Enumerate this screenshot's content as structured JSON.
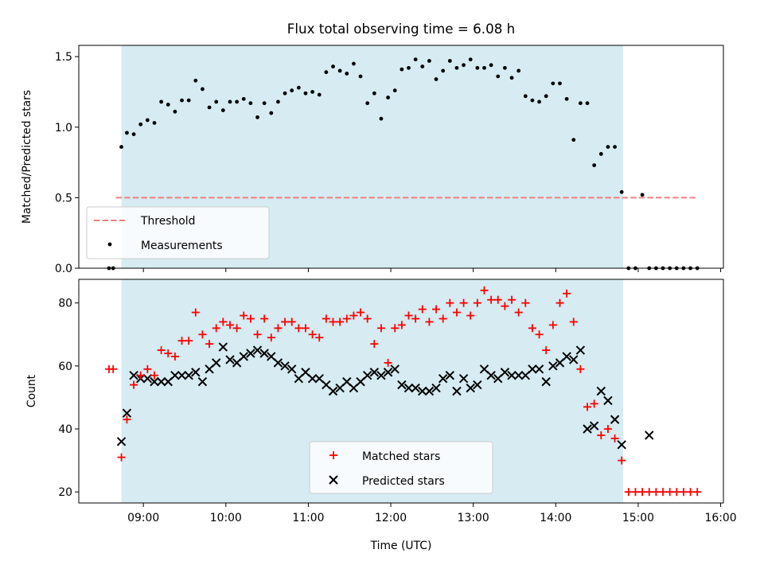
{
  "chart_data": [
    {
      "type": "scatter",
      "title": "Flux total observing time = 6.08 h",
      "ylabel": "Matched/Predicted stars",
      "xlabel": "",
      "ylim": [
        0,
        1.58
      ],
      "yticks": [
        0.0,
        0.5,
        1.0,
        1.5
      ],
      "ytick_labels": [
        "0.0",
        "0.5",
        "1.0",
        "1.5"
      ],
      "shaded_span": [
        "08:44",
        "14:49"
      ],
      "threshold": {
        "name": "Threshold",
        "value": 0.5,
        "x_range": [
          "08:40",
          "15:42"
        ],
        "color": "#f08080"
      },
      "legend": {
        "position": "lower-left",
        "entries": [
          "Threshold",
          "Measurements"
        ]
      },
      "series": [
        {
          "name": "Measurements",
          "color": "#000000",
          "x": [
            "08:35",
            "08:38",
            "08:44",
            "08:48",
            "08:53",
            "08:58",
            "09:03",
            "09:08",
            "09:13",
            "09:18",
            "09:23",
            "09:28",
            "09:33",
            "09:38",
            "09:43",
            "09:48",
            "09:53",
            "09:58",
            "10:03",
            "10:08",
            "10:13",
            "10:18",
            "10:23",
            "10:28",
            "10:33",
            "10:38",
            "10:43",
            "10:48",
            "10:53",
            "10:58",
            "11:03",
            "11:08",
            "11:13",
            "11:18",
            "11:23",
            "11:28",
            "11:33",
            "11:38",
            "11:43",
            "11:48",
            "11:53",
            "11:58",
            "12:03",
            "12:08",
            "12:13",
            "12:18",
            "12:23",
            "12:28",
            "12:33",
            "12:38",
            "12:43",
            "12:48",
            "12:53",
            "12:58",
            "13:03",
            "13:08",
            "13:13",
            "13:18",
            "13:23",
            "13:28",
            "13:33",
            "13:38",
            "13:43",
            "13:48",
            "13:53",
            "13:58",
            "14:03",
            "14:08",
            "14:13",
            "14:18",
            "14:23",
            "14:28",
            "14:33",
            "14:38",
            "14:43",
            "14:48",
            "14:53",
            "14:58",
            "15:03",
            "15:08",
            "15:13",
            "15:18",
            "15:23",
            "15:28",
            "15:33",
            "15:38",
            "15:43"
          ],
          "y": [
            0.0,
            0.0,
            0.86,
            0.96,
            0.95,
            1.02,
            1.05,
            1.03,
            1.18,
            1.16,
            1.11,
            1.19,
            1.19,
            1.33,
            1.27,
            1.14,
            1.18,
            1.12,
            1.18,
            1.18,
            1.2,
            1.17,
            1.07,
            1.17,
            1.1,
            1.18,
            1.24,
            1.26,
            1.28,
            1.24,
            1.25,
            1.23,
            1.39,
            1.43,
            1.4,
            1.38,
            1.45,
            1.36,
            1.17,
            1.24,
            1.06,
            1.21,
            1.26,
            1.41,
            1.42,
            1.48,
            1.43,
            1.47,
            1.34,
            1.4,
            1.47,
            1.42,
            1.44,
            1.48,
            1.42,
            1.42,
            1.44,
            1.36,
            1.42,
            1.35,
            1.4,
            1.22,
            1.19,
            1.18,
            1.22,
            1.31,
            1.31,
            1.2,
            0.91,
            1.17,
            1.17,
            0.73,
            0.81,
            0.86,
            0.86,
            0.54,
            0.0,
            0.0,
            0.52,
            0.0,
            0.0,
            0.0,
            0.0,
            0.0,
            0.0,
            0.0,
            0.0
          ]
        }
      ]
    },
    {
      "type": "scatter",
      "title": "",
      "xlabel": "Time (UTC)",
      "ylabel": "Count",
      "xlim": [
        "08:13",
        "16:02"
      ],
      "ylim": [
        16.5,
        87.5
      ],
      "xticks": [
        "09:00",
        "10:00",
        "11:00",
        "12:00",
        "13:00",
        "14:00",
        "15:00",
        "16:00"
      ],
      "yticks": [
        20,
        40,
        60,
        80
      ],
      "ytick_labels": [
        "20",
        "40",
        "60",
        "80"
      ],
      "shaded_span": [
        "08:44",
        "14:49"
      ],
      "legend": {
        "position": "lower-center",
        "entries": [
          "Matched stars",
          "Predicted stars"
        ]
      },
      "series": [
        {
          "name": "Matched stars",
          "marker": "+",
          "color": "#ff0000",
          "x": [
            "08:35",
            "08:38",
            "08:44",
            "08:48",
            "08:53",
            "08:58",
            "09:03",
            "09:08",
            "09:13",
            "09:18",
            "09:23",
            "09:28",
            "09:33",
            "09:38",
            "09:43",
            "09:48",
            "09:53",
            "09:58",
            "10:03",
            "10:08",
            "10:13",
            "10:18",
            "10:23",
            "10:28",
            "10:33",
            "10:38",
            "10:43",
            "10:48",
            "10:53",
            "10:58",
            "11:03",
            "11:08",
            "11:13",
            "11:18",
            "11:23",
            "11:28",
            "11:33",
            "11:38",
            "11:43",
            "11:48",
            "11:53",
            "11:58",
            "12:03",
            "12:08",
            "12:13",
            "12:18",
            "12:23",
            "12:28",
            "12:33",
            "12:38",
            "12:43",
            "12:48",
            "12:53",
            "12:58",
            "13:03",
            "13:08",
            "13:13",
            "13:18",
            "13:23",
            "13:28",
            "13:33",
            "13:38",
            "13:43",
            "13:48",
            "13:53",
            "13:58",
            "14:03",
            "14:08",
            "14:13",
            "14:18",
            "14:23",
            "14:28",
            "14:33",
            "14:38",
            "14:43",
            "14:48",
            "14:53",
            "14:58",
            "15:03",
            "15:08",
            "15:13",
            "15:18",
            "15:23",
            "15:28",
            "15:33",
            "15:38",
            "15:43"
          ],
          "y": [
            59,
            59,
            31,
            43,
            54,
            57,
            59,
            57,
            65,
            64,
            63,
            68,
            68,
            77,
            70,
            67,
            72,
            74,
            73,
            72,
            76,
            75,
            70,
            75,
            69,
            72,
            74,
            74,
            72,
            72,
            70,
            69,
            75,
            74,
            74,
            75,
            76,
            77,
            75,
            67,
            72,
            61,
            72,
            73,
            76,
            75,
            78,
            74,
            78,
            75,
            80,
            77,
            80,
            76,
            80,
            84,
            81,
            81,
            79,
            81,
            77,
            80,
            72,
            70,
            65,
            73,
            80,
            83,
            74,
            59,
            47,
            48,
            38,
            40,
            37,
            30,
            20,
            20,
            20,
            20,
            20,
            20,
            20,
            20,
            20,
            20,
            20
          ]
        },
        {
          "name": "Predicted stars",
          "marker": "x",
          "color": "#000000",
          "x": [
            "08:44",
            "08:48",
            "08:53",
            "08:58",
            "09:03",
            "09:08",
            "09:13",
            "09:18",
            "09:23",
            "09:28",
            "09:33",
            "09:38",
            "09:43",
            "09:48",
            "09:53",
            "09:58",
            "10:03",
            "10:08",
            "10:13",
            "10:18",
            "10:23",
            "10:28",
            "10:33",
            "10:38",
            "10:43",
            "10:48",
            "10:53",
            "10:58",
            "11:03",
            "11:08",
            "11:13",
            "11:18",
            "11:23",
            "11:28",
            "11:33",
            "11:38",
            "11:43",
            "11:48",
            "11:53",
            "11:58",
            "12:03",
            "12:08",
            "12:13",
            "12:18",
            "12:23",
            "12:28",
            "12:33",
            "12:38",
            "12:43",
            "12:48",
            "12:53",
            "12:58",
            "13:03",
            "13:08",
            "13:13",
            "13:18",
            "13:23",
            "13:28",
            "13:33",
            "13:38",
            "13:43",
            "13:48",
            "13:53",
            "13:58",
            "14:03",
            "14:08",
            "14:13",
            "14:18",
            "14:23",
            "14:28",
            "14:33",
            "14:38",
            "14:43",
            "14:48",
            "15:08"
          ],
          "y": [
            36,
            45,
            57,
            56,
            56,
            55,
            55,
            55,
            57,
            57,
            57,
            58,
            55,
            59,
            61,
            66,
            62,
            61,
            63,
            64,
            65,
            64,
            63,
            61,
            60,
            59,
            56,
            58,
            56,
            56,
            54,
            52,
            53,
            55,
            53,
            55,
            57,
            58,
            57,
            58,
            59,
            54,
            53,
            53,
            52,
            52,
            53,
            56,
            57,
            52,
            56,
            53,
            54,
            59,
            57,
            56,
            58,
            57,
            57,
            57,
            59,
            59,
            55,
            60,
            61,
            63,
            62,
            65,
            40,
            41,
            52,
            49,
            43,
            35,
            38
          ]
        }
      ]
    }
  ]
}
